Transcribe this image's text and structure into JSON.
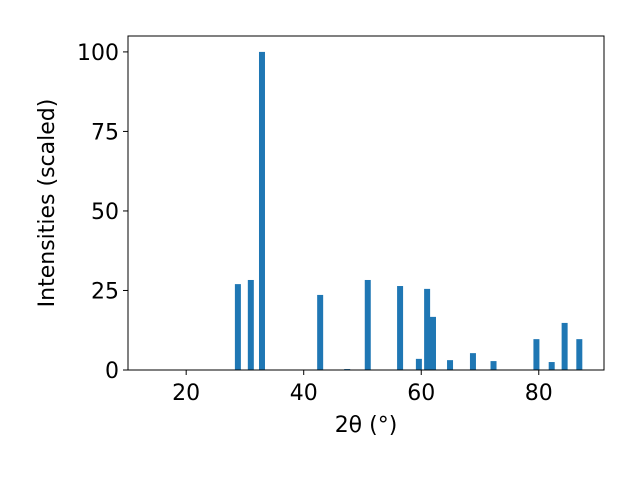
{
  "chart_data": {
    "type": "bar",
    "xlabel": "2θ (°)",
    "ylabel": "Intensities (scaled)",
    "color": "#1f77b4",
    "x": [
      28.8,
      31.0,
      32.9,
      42.8,
      47.4,
      50.9,
      56.4,
      59.6,
      61.0,
      62.0,
      64.9,
      68.8,
      72.3,
      79.6,
      82.2,
      84.4,
      86.9
    ],
    "values": [
      27.0,
      28.3,
      100,
      23.6,
      0.3,
      28.3,
      26.4,
      3.5,
      25.5,
      16.7,
      3.1,
      5.3,
      2.8,
      9.7,
      2.5,
      14.8,
      9.7
    ],
    "xlim": [
      10.1,
      91.1
    ],
    "xticks": [
      20,
      40,
      60,
      80
    ],
    "ylim": [
      0,
      105
    ],
    "yticks": [
      0,
      25,
      50,
      75,
      100
    ]
  }
}
